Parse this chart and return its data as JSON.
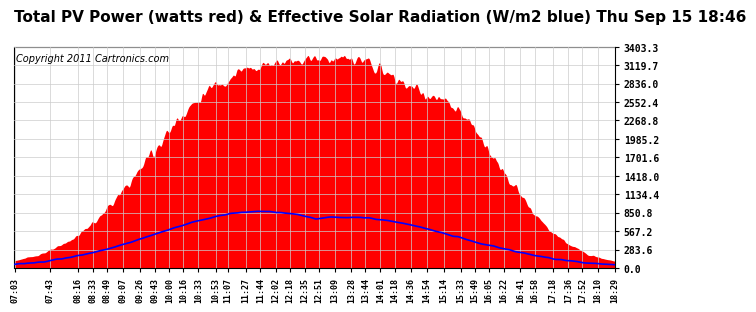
{
  "title": "Total PV Power (watts red) & Effective Solar Radiation (W/m2 blue) Thu Sep 15 18:46",
  "copyright_text": "Copyright 2011 Cartronics.com",
  "y_max": 3403.3,
  "y_min": 0.0,
  "y_ticks": [
    0.0,
    283.6,
    567.2,
    850.8,
    1134.4,
    1418.0,
    1701.6,
    1985.2,
    2268.8,
    2552.4,
    2836.0,
    3119.7,
    3403.3
  ],
  "x_labels": [
    "07:03",
    "07:43",
    "08:16",
    "08:33",
    "08:49",
    "09:07",
    "09:26",
    "09:43",
    "10:00",
    "10:16",
    "10:33",
    "10:53",
    "11:07",
    "11:27",
    "11:44",
    "12:02",
    "12:18",
    "12:35",
    "12:51",
    "13:09",
    "13:28",
    "13:44",
    "14:01",
    "14:18",
    "14:36",
    "14:54",
    "15:14",
    "15:33",
    "15:49",
    "16:05",
    "16:22",
    "16:41",
    "16:58",
    "17:18",
    "17:36",
    "17:52",
    "18:10",
    "18:29"
  ],
  "background_color": "#ffffff",
  "red_color": "#ff0000",
  "blue_color": "#0000ff",
  "grid_color": "#cccccc",
  "title_fontsize": 11,
  "copyright_fontsize": 7.0
}
